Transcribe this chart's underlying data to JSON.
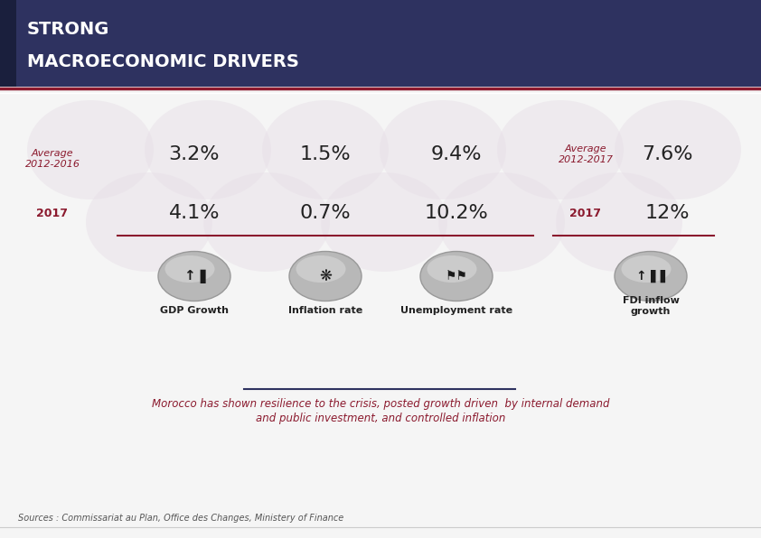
{
  "title_line1": "STRONG",
  "title_line2": "MACROECONOMIC DRIVERS",
  "title_bg_color": "#2E3260",
  "title_text_color": "#FFFFFF",
  "accent_bar_color": "#8B1A2E",
  "bg_color": "#F5F5F5",
  "label_color": "#8B1A2E",
  "value_color": "#222222",
  "row1_label": "Average\n2012-2016",
  "row2_label": "2017",
  "col1_label": "GDP Growth",
  "col2_label": "Inflation rate",
  "col3_label": "Unemployment rate",
  "col4_label": "FDI inflow\ngrowth",
  "row1_values": [
    "3.2%",
    "1.5%",
    "9.4%"
  ],
  "row2_values": [
    "4.1%",
    "0.7%",
    "10.2%"
  ],
  "right_row1_label": "Average\n2012-2017",
  "right_row2_label": "2017",
  "right_row1_value": "7.6%",
  "right_row2_value": "12%",
  "separator_color": "#8B1A2E",
  "footer_line1": "Morocco has shown resilience to the crisis, posted growth driven  by internal demand",
  "footer_line2": "and public investment, and controlled inflation",
  "source_text": "Sources : Commissariat au Plan, Office des Changes, Ministery of Finance",
  "source_color": "#555555",
  "divider_color": "#2E3260",
  "watermark_color": "#E8E0E8"
}
